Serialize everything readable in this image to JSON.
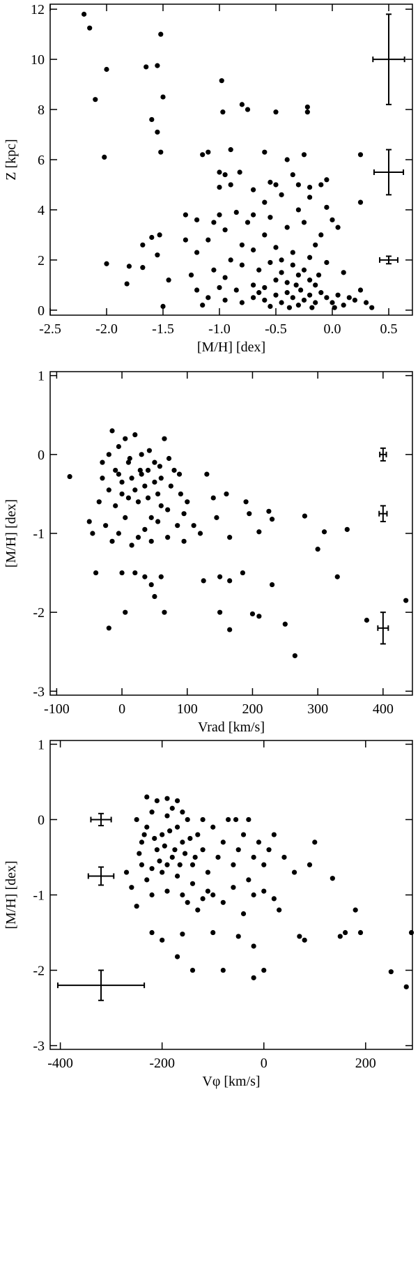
{
  "chart_data": [
    {
      "type": "scatter",
      "x_label": "[M/H] [dex]",
      "y_label": "Z [kpc]",
      "xlim": [
        -2.5,
        0.71
      ],
      "ylim": [
        -0.2,
        12.2
      ],
      "xticks": [
        -2.5,
        {
          "value": -2,
          "label": "-2.0"
        },
        -1.5,
        {
          "value": -1,
          "label": "-1.0"
        },
        -0.5,
        {
          "value": 0,
          "label": "0.0"
        },
        0.5
      ],
      "yticks": [
        0,
        2,
        4,
        6,
        8,
        10,
        12
      ],
      "series": [
        {
          "color": "#000000",
          "x": [
            -2.2,
            -2.15,
            -2.0,
            -2.1,
            -2.02,
            -1.65,
            -1.55,
            -1.52,
            -1.5,
            -1.6,
            -1.55,
            -1.52,
            -1.68,
            -1.6,
            -1.53,
            -1.55,
            -1.68,
            -1.45,
            -1.8,
            -2.0,
            -1.82,
            -1.5,
            -0.98,
            -0.8,
            -0.75,
            -0.22,
            -0.22,
            -0.97,
            -0.5,
            0.25,
            0.25,
            -0.25,
            -0.6,
            -1.1,
            -1.15,
            -1.3,
            -1.2,
            -1.1,
            -1.0,
            -0.95,
            -0.9,
            -1.0,
            -0.82,
            -0.55,
            -0.5,
            -0.45,
            -0.35,
            -0.3,
            -0.1,
            -0.05,
            -0.2,
            -0.05,
            0.0,
            -0.3,
            -0.6,
            -0.7,
            -0.85,
            -1.0,
            -1.05,
            -0.95,
            -0.75,
            -0.55,
            -0.4,
            -0.25,
            -0.1,
            -0.6,
            -0.8,
            -0.7,
            -0.5,
            -0.35,
            -0.2,
            -0.05,
            0.1,
            -0.9,
            -1.05,
            -0.95,
            -0.8,
            -0.65,
            -0.55,
            -0.45,
            -0.35,
            -0.3,
            -0.25,
            -0.2,
            -0.15,
            -0.4,
            -0.5,
            -0.6,
            -0.7,
            -0.85,
            -1.0,
            -1.1,
            -0.95,
            -0.8,
            -0.7,
            -0.6,
            -0.5,
            -0.45,
            -0.4,
            -0.35,
            -0.3,
            -0.28,
            -0.25,
            -0.2,
            -0.15,
            -0.1,
            -0.05,
            0.0,
            0.05,
            0.1,
            0.15,
            0.2,
            0.25,
            0.3,
            0.35,
            -0.55,
            -0.38,
            -0.18,
            0.02,
            -0.65,
            -0.32,
            -0.12,
            -1.2,
            -1.25,
            -1.3,
            -1.15,
            -1.2,
            -0.9,
            -0.7,
            -0.4,
            -0.2,
            0.05,
            -0.15,
            -0.45
          ],
          "values": [
            11.8,
            11.25,
            9.6,
            8.4,
            6.1,
            9.7,
            9.75,
            11.0,
            8.5,
            7.6,
            7.1,
            6.3,
            2.6,
            2.9,
            3.0,
            2.2,
            1.7,
            1.2,
            1.75,
            1.85,
            1.05,
            0.15,
            9.15,
            8.2,
            8.0,
            8.1,
            7.9,
            7.9,
            7.9,
            6.2,
            4.3,
            6.2,
            6.3,
            6.3,
            6.2,
            3.8,
            3.6,
            2.8,
            5.5,
            5.4,
            5.0,
            4.9,
            5.5,
            5.1,
            5.0,
            4.6,
            5.4,
            5.0,
            5.0,
            5.2,
            4.5,
            4.1,
            3.6,
            4.0,
            4.3,
            3.8,
            3.9,
            3.8,
            3.5,
            3.2,
            3.5,
            3.7,
            3.3,
            3.5,
            3.0,
            3.0,
            2.6,
            2.4,
            2.5,
            2.3,
            2.1,
            1.9,
            1.5,
            2.0,
            1.6,
            1.3,
            1.8,
            1.6,
            1.9,
            1.5,
            1.8,
            1.4,
            1.6,
            1.2,
            1.0,
            1.1,
            1.2,
            0.9,
            1.0,
            0.8,
            0.9,
            0.5,
            0.4,
            0.3,
            0.5,
            0.4,
            0.6,
            0.3,
            0.7,
            0.5,
            0.2,
            0.8,
            0.4,
            0.6,
            0.3,
            0.7,
            0.5,
            0.3,
            0.6,
            0.2,
            0.5,
            0.4,
            0.8,
            0.3,
            0.1,
            0.15,
            0.1,
            0.1,
            0.1,
            0.7,
            1.0,
            1.4,
            2.3,
            1.4,
            2.8,
            0.2,
            0.8,
            6.4,
            4.8,
            6.0,
            4.9,
            3.3,
            2.6,
            2.0
          ]
        }
      ],
      "error_bars": {
        "color": "#000000",
        "x": [
          0.5,
          0.5,
          0.5
        ],
        "values": [
          10,
          5.5,
          2
        ],
        "xerr": [
          0.14,
          0.13,
          0.08
        ],
        "yerr": [
          1.8,
          0.9,
          0.15
        ]
      }
    },
    {
      "type": "scatter",
      "x_label": "Vrad [km/s]",
      "y_label": "[M/H] [dex]",
      "xlim": [
        -110,
        445
      ],
      "ylim": [
        -3.05,
        1.05
      ],
      "xticks": [
        -100,
        0,
        100,
        200,
        300,
        400
      ],
      "yticks": [
        -3,
        -2,
        -1,
        0,
        1
      ],
      "series": [
        {
          "color": "#000000",
          "x": [
            -80,
            -50,
            -45,
            -40,
            -30,
            -20,
            -15,
            -10,
            -5,
            0,
            5,
            10,
            15,
            20,
            25,
            30,
            35,
            40,
            45,
            50,
            55,
            60,
            65,
            70,
            75,
            80,
            85,
            90,
            95,
            100,
            110,
            120,
            -35,
            -25,
            -15,
            -5,
            5,
            15,
            25,
            35,
            45,
            55,
            -20,
            -10,
            0,
            10,
            20,
            30,
            40,
            50,
            60,
            -30,
            -5,
            12,
            28,
            42,
            58,
            72,
            88,
            130,
            140,
            145,
            160,
            165,
            190,
            195,
            210,
            225,
            230,
            280,
            300,
            310,
            330,
            345,
            0,
            20,
            35,
            45,
            50,
            60,
            125,
            150,
            165,
            185,
            230,
            -20,
            5,
            65,
            150,
            165,
            200,
            210,
            250,
            265,
            375,
            435,
            70,
            95
          ],
          "values": [
            -0.28,
            -0.85,
            -1.0,
            -1.5,
            -0.3,
            0.0,
            0.3,
            -0.2,
            0.1,
            -0.5,
            0.2,
            -0.1,
            -0.3,
            0.25,
            -0.6,
            0.0,
            -0.4,
            -0.2,
            -0.8,
            -0.1,
            -0.5,
            -0.3,
            0.2,
            -0.7,
            -0.4,
            -0.2,
            -0.9,
            -0.5,
            -0.75,
            -0.6,
            -0.9,
            -1.0,
            -0.6,
            -0.9,
            -1.1,
            -1.0,
            -0.8,
            -1.15,
            -1.05,
            -0.95,
            -1.1,
            -0.85,
            -0.45,
            -0.65,
            -0.35,
            -0.55,
            -0.45,
            -0.25,
            -0.55,
            -0.35,
            -0.65,
            -0.1,
            -0.25,
            -0.05,
            -0.2,
            0.05,
            -0.15,
            -0.05,
            -0.25,
            -0.25,
            -0.55,
            -0.8,
            -0.5,
            -1.05,
            -0.6,
            -0.75,
            -0.98,
            -0.72,
            -0.82,
            -0.78,
            -1.2,
            -0.98,
            -1.55,
            -0.95,
            -1.5,
            -1.5,
            -1.55,
            -1.65,
            -1.8,
            -1.55,
            -1.6,
            -1.55,
            -1.6,
            -1.5,
            -1.65,
            -2.2,
            -2.0,
            -2.0,
            -2.0,
            -2.22,
            -2.02,
            -2.05,
            -2.15,
            -2.55,
            -2.1,
            -1.85,
            -1.05,
            -1.1
          ]
        }
      ],
      "error_bars": {
        "color": "#000000",
        "x": [
          400,
          400,
          400
        ],
        "values": [
          0,
          -0.75,
          -2.2
        ],
        "xerr": [
          5,
          6,
          8
        ],
        "yerr": [
          0.08,
          0.1,
          0.2
        ]
      }
    },
    {
      "type": "scatter",
      "x_label": "Vφ [km/s]",
      "y_label": "[M/H] [dex]",
      "xlim": [
        -420,
        292
      ],
      "ylim": [
        -3.05,
        1.05
      ],
      "xticks": [
        -400,
        -200,
        0,
        200
      ],
      "yticks": [
        -3,
        -2,
        -1,
        0,
        1
      ],
      "series": [
        {
          "color": "#000000",
          "x": [
            -230,
            -210,
            -190,
            -170,
            -250,
            -240,
            -230,
            -220,
            -210,
            -200,
            -190,
            -180,
            -170,
            -160,
            -150,
            -140,
            -130,
            -120,
            -110,
            -100,
            -90,
            -80,
            -70,
            -60,
            -50,
            -40,
            -30,
            -20,
            -10,
            0,
            10,
            20,
            40,
            60,
            90,
            100,
            -270,
            -260,
            -250,
            -240,
            -230,
            -220,
            -200,
            -190,
            -170,
            -160,
            -150,
            -140,
            -130,
            -120,
            -110,
            -100,
            -80,
            -60,
            -40,
            -20,
            0,
            20,
            30,
            -245,
            -235,
            -215,
            -205,
            -195,
            -185,
            -175,
            -165,
            -155,
            -145,
            -135,
            -190,
            -220,
            -180,
            -160,
            -120,
            -220,
            -200,
            -170,
            -160,
            -140,
            -100,
            -80,
            -50,
            -20,
            -20,
            0,
            70,
            80,
            135,
            150,
            160,
            180,
            190,
            250,
            280,
            290,
            -30,
            -55
          ],
          "values": [
            0.3,
            0.25,
            0.28,
            0.25,
            0.0,
            -0.3,
            -0.1,
            0.1,
            -0.4,
            -0.2,
            0.05,
            -0.5,
            -0.1,
            -0.3,
            0.0,
            -0.6,
            -0.2,
            -0.4,
            -0.7,
            -0.1,
            -0.5,
            -0.3,
            0.0,
            -0.6,
            -0.4,
            -0.2,
            -0.8,
            -0.5,
            -0.3,
            -0.6,
            -0.4,
            -0.2,
            -0.5,
            -0.7,
            -0.6,
            -0.3,
            -0.7,
            -0.9,
            -1.15,
            -0.6,
            -0.8,
            -1.0,
            -0.7,
            -0.95,
            -0.75,
            -1.0,
            -1.1,
            -0.85,
            -1.2,
            -1.05,
            -0.95,
            -1.0,
            -1.1,
            -0.9,
            -1.25,
            -1.0,
            -0.95,
            -1.05,
            -1.2,
            -0.45,
            -0.2,
            -0.25,
            -0.55,
            -0.35,
            -0.15,
            -0.4,
            -0.6,
            -0.45,
            -0.25,
            -0.5,
            -0.6,
            -0.65,
            0.15,
            0.1,
            0.0,
            -1.5,
            -1.6,
            -1.82,
            -1.52,
            -2.0,
            -1.5,
            -2.0,
            -1.55,
            -1.68,
            -2.1,
            -2.0,
            -1.55,
            -1.6,
            -0.78,
            -1.55,
            -1.5,
            -1.2,
            -1.5,
            -2.02,
            -2.22,
            -1.5,
            0.0,
            0.0
          ]
        }
      ],
      "error_bars": {
        "color": "#000000",
        "x": [
          -320,
          -320,
          -320
        ],
        "values": [
          0,
          -0.75,
          -2.2
        ],
        "xerr": [
          20,
          25,
          85
        ],
        "yerr": [
          0.08,
          0.12,
          0.2
        ]
      }
    }
  ]
}
